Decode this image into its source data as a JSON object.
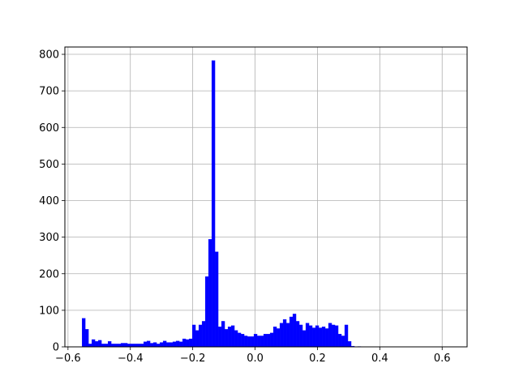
{
  "chart_data": {
    "type": "bar",
    "title": "",
    "xlabel": "",
    "ylabel": "",
    "xlim": [
      -0.61,
      0.68
    ],
    "ylim": [
      0,
      820
    ],
    "grid": true,
    "bar_color": "#0000ff",
    "bin_width": 0.0104,
    "x_ticks": [
      -0.6,
      -0.4,
      -0.2,
      0.0,
      0.2,
      0.4,
      0.6
    ],
    "x_tick_labels": [
      "−0.6",
      "−0.4",
      "−0.2",
      "0.0",
      "0.2",
      "0.4",
      "0.6"
    ],
    "y_ticks": [
      0,
      100,
      200,
      300,
      400,
      500,
      600,
      700,
      800
    ],
    "y_tick_labels": [
      "0",
      "100",
      "200",
      "300",
      "400",
      "500",
      "600",
      "700",
      "800"
    ],
    "bin_start": -0.555,
    "values": [
      78,
      48,
      8,
      20,
      15,
      18,
      8,
      8,
      15,
      8,
      8,
      8,
      10,
      10,
      8,
      8,
      8,
      8,
      8,
      14,
      16,
      10,
      12,
      8,
      12,
      16,
      12,
      12,
      14,
      16,
      14,
      22,
      20,
      22,
      60,
      45,
      60,
      70,
      192,
      294,
      783,
      260,
      55,
      70,
      48,
      55,
      58,
      45,
      38,
      35,
      30,
      28,
      28,
      35,
      30,
      30,
      35,
      35,
      38,
      55,
      50,
      65,
      75,
      65,
      82,
      90,
      70,
      60,
      45,
      65,
      58,
      52,
      58,
      52,
      55,
      50,
      65,
      60,
      58,
      35,
      30,
      60,
      15,
      2,
      0,
      1,
      0,
      0,
      0,
      0,
      0,
      0,
      0,
      0
    ]
  }
}
